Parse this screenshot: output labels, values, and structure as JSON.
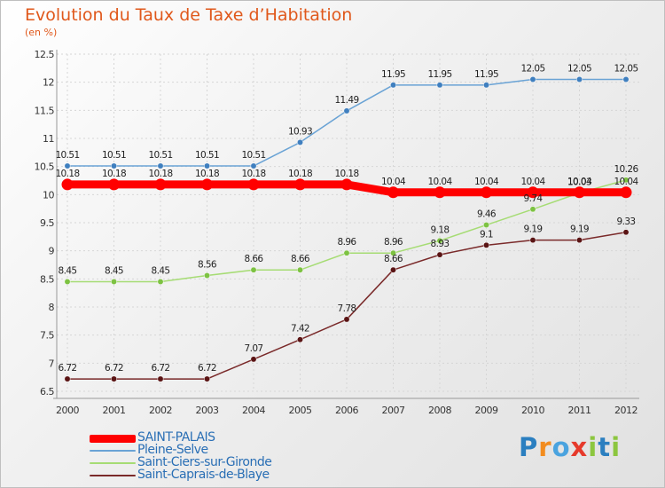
{
  "title": "Evolution du Taux de Taxe d’Habitation",
  "subtitle": "(en %)",
  "logo": {
    "letters": [
      "P",
      "r",
      "o",
      "x",
      "i",
      "t",
      "i"
    ],
    "colors": [
      "#2b7fc0",
      "#f28c1e",
      "#4aa3df",
      "#e63a2b",
      "#8cc63f",
      "#2b7fc0",
      "#8cc63f"
    ]
  },
  "chart_data": {
    "type": "line",
    "categories": [
      "2000",
      "2001",
      "2002",
      "2003",
      "2004",
      "2005",
      "2006",
      "2007",
      "2008",
      "2009",
      "2010",
      "2011",
      "2012"
    ],
    "ylim": [
      6.5,
      12.5
    ],
    "yticks": [
      6.5,
      7,
      7.5,
      8,
      8.5,
      9,
      9.5,
      10,
      10.5,
      11,
      11.5,
      12,
      12.5
    ],
    "ytick_labels": [
      "6.5",
      "7",
      "7.5",
      "8",
      "8.5",
      "9",
      "9.5",
      "10",
      "10.5",
      "11",
      "11.5",
      "12",
      "12.5"
    ],
    "series": [
      {
        "name": "SAINT-PALAIS",
        "color": "#ff0000",
        "emphasis": true,
        "values": [
          10.18,
          10.18,
          10.18,
          10.18,
          10.18,
          10.18,
          10.18,
          10.04,
          10.04,
          10.04,
          10.04,
          10.04,
          10.04
        ],
        "labels": [
          "10.18",
          "10.18",
          "10.18",
          "10.18",
          "10.18",
          "10.18",
          "10.18",
          "10.04",
          "10.04",
          "10.04",
          "10.04",
          "10.04",
          "10.04"
        ]
      },
      {
        "name": "Pleine-Selve",
        "color": "#6aa3d5",
        "marker": "#3f7fbf",
        "values": [
          10.51,
          10.51,
          10.51,
          10.51,
          10.51,
          10.93,
          11.49,
          11.95,
          11.95,
          11.95,
          12.05,
          12.05,
          12.05
        ],
        "labels": [
          "10.51",
          "10.51",
          "10.51",
          "10.51",
          "10.51",
          "10.93",
          "11.49",
          "11.95",
          "11.95",
          "11.95",
          "12.05",
          "12.05",
          "12.05"
        ]
      },
      {
        "name": "Saint-Ciers-sur-Gironde",
        "color": "#a6dc74",
        "marker": "#7dc242",
        "values": [
          8.45,
          8.45,
          8.45,
          8.56,
          8.66,
          8.66,
          8.96,
          8.96,
          9.18,
          9.46,
          9.74,
          10.03,
          10.26
        ],
        "labels": [
          "8.45",
          "8.45",
          "8.45",
          "8.56",
          "8.66",
          "8.66",
          "8.96",
          "8.96",
          "9.18",
          "9.46",
          "9.74",
          "10.03",
          "10.26"
        ]
      },
      {
        "name": "Saint-Caprais-de-Blaye",
        "color": "#7a2a2a",
        "marker": "#5a1414",
        "values": [
          6.72,
          6.72,
          6.72,
          6.72,
          7.07,
          7.42,
          7.78,
          8.66,
          8.93,
          9.1,
          9.19,
          9.19,
          9.33
        ],
        "labels": [
          "6.72",
          "6.72",
          "6.72",
          "6.72",
          "7.07",
          "7.42",
          "7.78",
          "8.66",
          "8.93",
          "9.1",
          "9.19",
          "9.19",
          "9.33"
        ]
      }
    ]
  }
}
